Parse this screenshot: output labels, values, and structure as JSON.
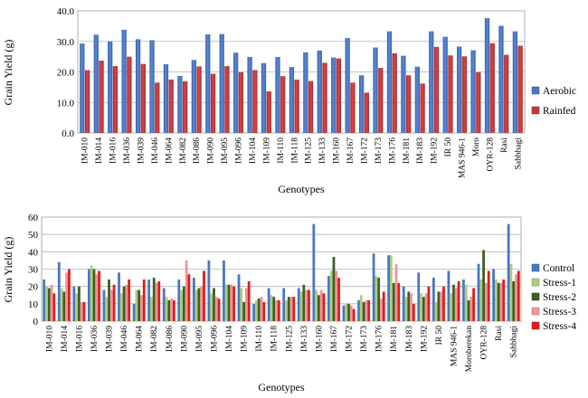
{
  "chart_data": [
    {
      "type": "bar",
      "title": "",
      "xlabel": "Genotypes",
      "ylabel": "Grain Yield (g)",
      "ylim": [
        0,
        40
      ],
      "yticks": [
        "0.0",
        "10.0",
        "20.0",
        "30.0",
        "40.0"
      ],
      "yticks_values": [
        0,
        10,
        20,
        30,
        40
      ],
      "legend_position": "right",
      "categories": [
        "IM-010",
        "IM-014",
        "IM-016",
        "IM-036",
        "IM-039",
        "IM-046",
        "IM-064",
        "IM-082",
        "IM-086",
        "IM-090",
        "IM-095",
        "IM-096",
        "IM-104",
        "IM-109",
        "IM-110",
        "IM-118",
        "IM-125",
        "IM-133",
        "IM-160",
        "IM-167",
        "IM-172",
        "IM-173",
        "IM-176",
        "IM-181",
        "IM-183",
        "IM-192",
        "IR 50",
        "MAS 946-1",
        "Moro",
        "OYR-128",
        "Rasi",
        "Sahbhagi"
      ],
      "series": [
        {
          "name": "Aerobic",
          "color": "#4a76c0",
          "values": [
            29.3,
            32.2,
            30.0,
            33.8,
            30.7,
            30.4,
            22.5,
            18.7,
            23.9,
            32.3,
            32.4,
            26.3,
            24.9,
            22.9,
            24.9,
            21.6,
            26.4,
            27.0,
            24.7,
            31.1,
            18.9,
            28.0,
            33.3,
            25.3,
            21.7,
            33.3,
            31.5,
            28.3,
            27.1,
            37.6,
            35.1,
            33.3
          ]
        },
        {
          "name": "Rainfed",
          "color": "#c0393b",
          "values": [
            20.6,
            23.7,
            21.9,
            25.0,
            22.6,
            16.5,
            17.5,
            16.9,
            21.8,
            19.4,
            21.9,
            19.9,
            20.6,
            13.6,
            18.6,
            17.5,
            17.0,
            23.0,
            24.4,
            16.5,
            13.2,
            21.3,
            26.1,
            18.9,
            16.2,
            28.2,
            25.4,
            25.1,
            19.9,
            29.4,
            25.6,
            28.6
          ]
        }
      ]
    },
    {
      "type": "bar",
      "title": "",
      "xlabel": "Genotypes",
      "ylabel": "Grain Yield (g)",
      "ylim": [
        0,
        60
      ],
      "yticks": [
        "0",
        "10",
        "20",
        "30",
        "40",
        "50",
        "60"
      ],
      "yticks_values": [
        0,
        10,
        20,
        30,
        40,
        50,
        60
      ],
      "legend_position": "right",
      "categories": [
        "IM-010",
        "IM-014",
        "IM-016",
        "IM-036",
        "IM-039",
        "IM-046",
        "IM-064",
        "IM-082",
        "IM-086",
        "IM-090",
        "IM-095",
        "IM-096",
        "IM-104",
        "IM-109",
        "IM-110",
        "IM-118",
        "IM-125",
        "IM-133",
        "IM-160",
        "IM-167",
        "IM-172",
        "IM-173",
        "IM-176",
        "IM-181",
        "IM-183",
        "IM-192",
        "IR 50",
        "MAS 946-1",
        "Moroberekan",
        "OYR-128",
        "Rasi",
        "Sahbhagi"
      ],
      "series": [
        {
          "name": "Control",
          "color": "#4a76c0",
          "values": [
            24,
            34,
            20,
            30,
            18,
            28,
            10,
            24,
            19,
            24,
            25,
            35,
            35,
            27,
            10,
            19,
            19,
            19,
            56,
            26,
            9,
            12,
            39,
            38,
            20,
            28,
            25,
            29,
            24,
            33,
            30,
            56
          ]
        },
        {
          "name": "Stress-1",
          "color": "#a9cf7e",
          "values": [
            20,
            19,
            16,
            32,
            14,
            16,
            18,
            14,
            14,
            18,
            18,
            16,
            21,
            19,
            12,
            15,
            12,
            17,
            18,
            29,
            10,
            15,
            26,
            38,
            14,
            16,
            11,
            16,
            21,
            24,
            24,
            33
          ]
        },
        {
          "name": "Stress-2",
          "color": "#3d5e23",
          "values": [
            19,
            17,
            20,
            30,
            24,
            20,
            18,
            25,
            12,
            20,
            19,
            19,
            21,
            11,
            13,
            14,
            14,
            21,
            15,
            37,
            10,
            11,
            25,
            22,
            17,
            14,
            17,
            21,
            12,
            41,
            22,
            23
          ]
        },
        {
          "name": "Stress-3",
          "color": "#f29494",
          "values": [
            21,
            28,
            11,
            27,
            18,
            21,
            15,
            22,
            13,
            35,
            20,
            14,
            21,
            19,
            14,
            12,
            14,
            18,
            18,
            29,
            9,
            12,
            13,
            33,
            16,
            16,
            17,
            19,
            14,
            22,
            22,
            27
          ]
        },
        {
          "name": "Stress-4",
          "color": "#e01b1b",
          "values": [
            16,
            30,
            11,
            29,
            21,
            24,
            24,
            23,
            12,
            27,
            29,
            13,
            20,
            23,
            11,
            12,
            14,
            18,
            16,
            25,
            7,
            12,
            17,
            22,
            10,
            20,
            20,
            23,
            19,
            29,
            24,
            29
          ]
        }
      ]
    }
  ]
}
